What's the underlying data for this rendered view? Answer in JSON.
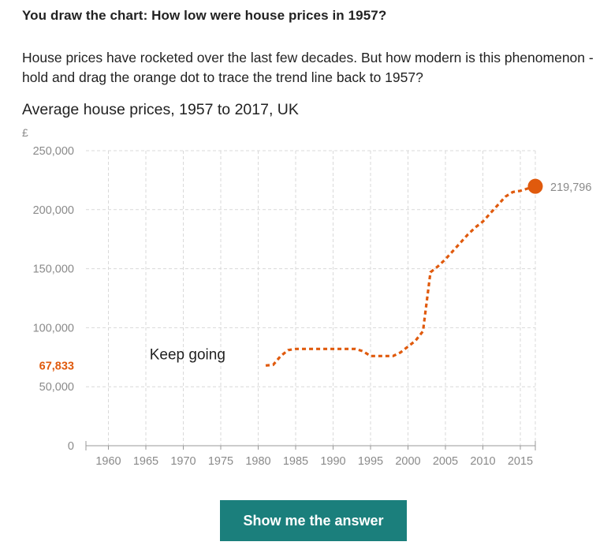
{
  "headline": "You draw the chart: How low were house prices in 1957?",
  "intro": "House prices have rocketed over the last few decades. But how modern is this phenomenon - hold and drag the orange dot to trace the trend line back to 1957?",
  "answer_button": "Show me the answer",
  "colors": {
    "accent": "#e05a0d",
    "grid": "#d9d9d9",
    "axis_text": "#8a8a8a",
    "button": "#1b7f7c"
  },
  "chart_data": {
    "type": "line",
    "title": "Average house prices, 1957 to 2017, UK",
    "unit_label": "£",
    "xlim": [
      1957,
      2017
    ],
    "ylim": [
      0,
      250000
    ],
    "x_ticks": [
      1960,
      1965,
      1970,
      1975,
      1980,
      1985,
      1990,
      1995,
      2000,
      2005,
      2010,
      2015
    ],
    "y_ticks": [
      0,
      50000,
      100000,
      150000,
      200000,
      250000
    ],
    "y_tick_labels": [
      "0",
      "50,000",
      "100,000",
      "150,000",
      "200,000",
      "250,000"
    ],
    "grid": true,
    "series": [
      {
        "style": "dashed",
        "x": [
          1981,
          1982,
          1983,
          1984,
          1985,
          1986,
          1987,
          1988,
          1989,
          1990,
          1991,
          1992,
          1993,
          1994,
          1995,
          1996,
          1997,
          1998,
          1999,
          2000,
          2001,
          2002,
          2003,
          2004,
          2005,
          2006,
          2007,
          2008,
          2009,
          2010,
          2011,
          2012,
          2013,
          2014,
          2015,
          2016,
          2017
        ],
        "y": [
          68000,
          68500,
          76000,
          81000,
          82000,
          82000,
          82000,
          82000,
          82000,
          82000,
          82000,
          82000,
          82000,
          80000,
          76000,
          76000,
          76000,
          76000,
          79000,
          84000,
          89000,
          97000,
          147000,
          152000,
          158000,
          165000,
          172000,
          179000,
          185000,
          190000,
          197000,
          204000,
          211000,
          215000,
          216000,
          218000,
          219796
        ]
      }
    ],
    "handle": {
      "x": 2017,
      "y": 219796,
      "label": "219,796"
    },
    "cursor_value": {
      "y": 67833,
      "label": "67,833"
    },
    "annotation": {
      "text": "Keep going",
      "x": 1965.5,
      "y": 82000
    }
  }
}
